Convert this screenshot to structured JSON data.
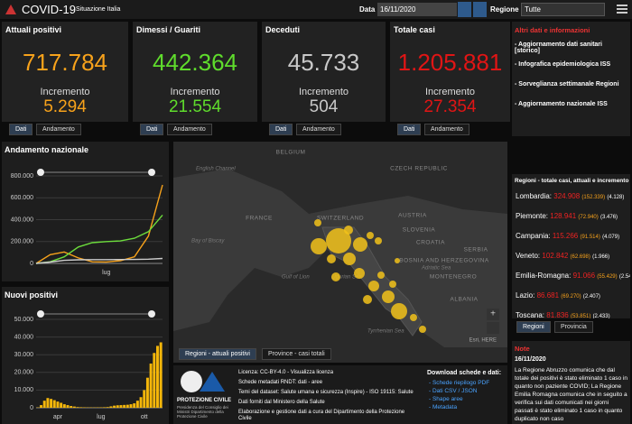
{
  "header": {
    "title": "COVID-19",
    "subtitle": "Situazione Italia",
    "date_label": "Data",
    "date": "16/11/2020",
    "region_label": "Regione",
    "region": "Tutte"
  },
  "cards": [
    {
      "title": "Attuali positivi",
      "value": "717.784",
      "inc_label": "Incremento",
      "inc": "5.294",
      "tabs": [
        "Dati",
        "Andamento"
      ]
    },
    {
      "title": "Dimessi / Guariti",
      "value": "442.364",
      "inc_label": "Incremento",
      "inc": "21.554",
      "tabs": [
        "Dati",
        "Andamento"
      ]
    },
    {
      "title": "Deceduti",
      "value": "45.733",
      "inc_label": "Incremento",
      "inc": "504",
      "tabs": [
        "Dati",
        "Andamento"
      ]
    },
    {
      "title": "Totale casi",
      "value": "1.205.881",
      "inc_label": "Incremento",
      "inc": "27.354",
      "tabs": [
        "Dati",
        "Andamento"
      ]
    }
  ],
  "info": {
    "title": "Altri dati e informazioni",
    "items": [
      "- Aggiornamento dati sanitari [storico]",
      "- Infografica epidemiologica ISS",
      "- Sorveglianza settimanale Regioni",
      "- Aggiornamento nazionale ISS"
    ]
  },
  "map": {
    "labels": [
      "BELGIUM",
      "CZECH REPUBLIC",
      "FRANCE",
      "SWITZERLAND",
      "AUSTRIA",
      "SLOVENIA",
      "CROATIA",
      "BOSNIA AND HERZEGOVINA",
      "SERBIA",
      "MONTENEGRO",
      "ALBANIA"
    ],
    "seas": [
      "English Channel",
      "Bay of Biscay",
      "Gulf of Lion",
      "Ligurian Sea",
      "Adriatic Sea",
      "Tyrrhenian Sea"
    ],
    "attribution": "Esri, HERE",
    "tabs": [
      "Regioni - attuali positivi",
      "Province - casi totali"
    ]
  },
  "regions": {
    "title": "Regioni - totale casi, attuali e incremento",
    "rows": [
      {
        "name": "Lombardia:",
        "total": "324.908",
        "active": "(152.339)",
        "inc": "(4.128)"
      },
      {
        "name": "Piemonte:",
        "total": "128.941",
        "active": "(72.940)",
        "inc": "(3.476)"
      },
      {
        "name": "Campania:",
        "total": "115.266",
        "active": "(91.514)",
        "inc": "(4.079)"
      },
      {
        "name": "Veneto:",
        "total": "102.842",
        "active": "(62.698)",
        "inc": "(1.966)"
      },
      {
        "name": "Emilia-Romagna:",
        "total": "91.066",
        "active": "(55.429)",
        "inc": "(2.547)"
      },
      {
        "name": "Lazio:",
        "total": "86.681",
        "active": "(69.270)",
        "inc": "(2.407)"
      },
      {
        "name": "Toscana:",
        "total": "81.836",
        "active": "(53.851)",
        "inc": "(2.433)"
      }
    ],
    "tabs": [
      "Regioni",
      "Provincia"
    ]
  },
  "notes": {
    "title": "Note",
    "date": "16/11/2020",
    "text": "La Regione Abruzzo comunica che dal totale dei positivi è stato eliminato 1 caso in quanto non paziente COVID; La Regione Emilia Romagna comunica che in seguito a verifica sui dati comunicati nei giorni passati è stato eliminato 1 caso in quanto duplicato non caso"
  },
  "footer": {
    "logo": "PROTEZIONE CIVILE",
    "logo_sub": "Presidenza del Consiglio dei Ministri Dipartimento della Protezione Civile",
    "lines": [
      "Licenza: CC-BY-4.0 - Visualizza licenza",
      "Schede metadati RNDT: dati - aree",
      "Temi del dataset: Salute umana e sicurezza (Inspire) - ISO 19115: Salute",
      "Dati forniti dal Ministero della Salute",
      "Elaborazione e gestione dati a cura del Dipartimento della Protezione Civile"
    ],
    "download_title": "Download schede e dati:",
    "downloads": [
      "- Schede riepilogo PDF",
      "- Dati CSV / JSON",
      "- Shape aree",
      "- Metadata"
    ]
  },
  "chart_data": [
    {
      "type": "line",
      "title": "Andamento nazionale",
      "categories": [
        null,
        null,
        null,
        null,
        null,
        "lug",
        null,
        null,
        null,
        null
      ],
      "series": [
        {
          "color": "#f7a21b",
          "values": [
            0,
            80000,
            105000,
            50000,
            15000,
            13000,
            25000,
            60000,
            250000,
            717784
          ]
        },
        {
          "color": "#6cdc3c",
          "values": [
            0,
            15000,
            60000,
            150000,
            190000,
            200000,
            205000,
            230000,
            290000,
            442364
          ]
        },
        {
          "color": "#cccccc",
          "values": [
            0,
            12000,
            28000,
            33000,
            35000,
            35000,
            35500,
            36000,
            39000,
            45733
          ]
        }
      ],
      "ylim": [
        0,
        800000
      ],
      "yticks": [
        0,
        {
          "value": 200000,
          "label": "200.000"
        },
        {
          "value": 400000,
          "label": "400.000"
        },
        {
          "value": 600000,
          "label": "600.000"
        },
        {
          "value": 800000,
          "label": "800.000"
        }
      ],
      "grid": true
    },
    {
      "type": "bar",
      "title": "Nuovi positivi",
      "color": "#f5b70a",
      "categories": [
        null,
        null,
        null,
        null,
        null,
        null,
        "apr",
        null,
        null,
        null,
        null,
        null,
        null,
        null,
        null,
        null,
        null,
        null,
        null,
        "lug",
        null,
        null,
        null,
        null,
        null,
        null,
        null,
        null,
        null,
        null,
        null,
        null,
        "ott",
        null,
        null,
        null,
        null,
        null
      ],
      "values": [
        200,
        1500,
        4000,
        5500,
        5000,
        4300,
        3500,
        2800,
        2000,
        1500,
        1000,
        700,
        400,
        300,
        250,
        200,
        200,
        180,
        220,
        250,
        300,
        400,
        800,
        1200,
        1400,
        1500,
        1600,
        1700,
        2000,
        2500,
        4000,
        6000,
        10000,
        17000,
        25000,
        31000,
        35000,
        37000
      ],
      "ylim": [
        0,
        50000
      ],
      "yticks": [
        0,
        {
          "value": 10000,
          "label": "10.000"
        },
        {
          "value": 20000,
          "label": "20.000"
        },
        {
          "value": 30000,
          "label": "30.000"
        },
        {
          "value": 40000,
          "label": "40.000"
        },
        {
          "value": 50000,
          "label": "50.000"
        }
      ],
      "grid": true
    }
  ]
}
